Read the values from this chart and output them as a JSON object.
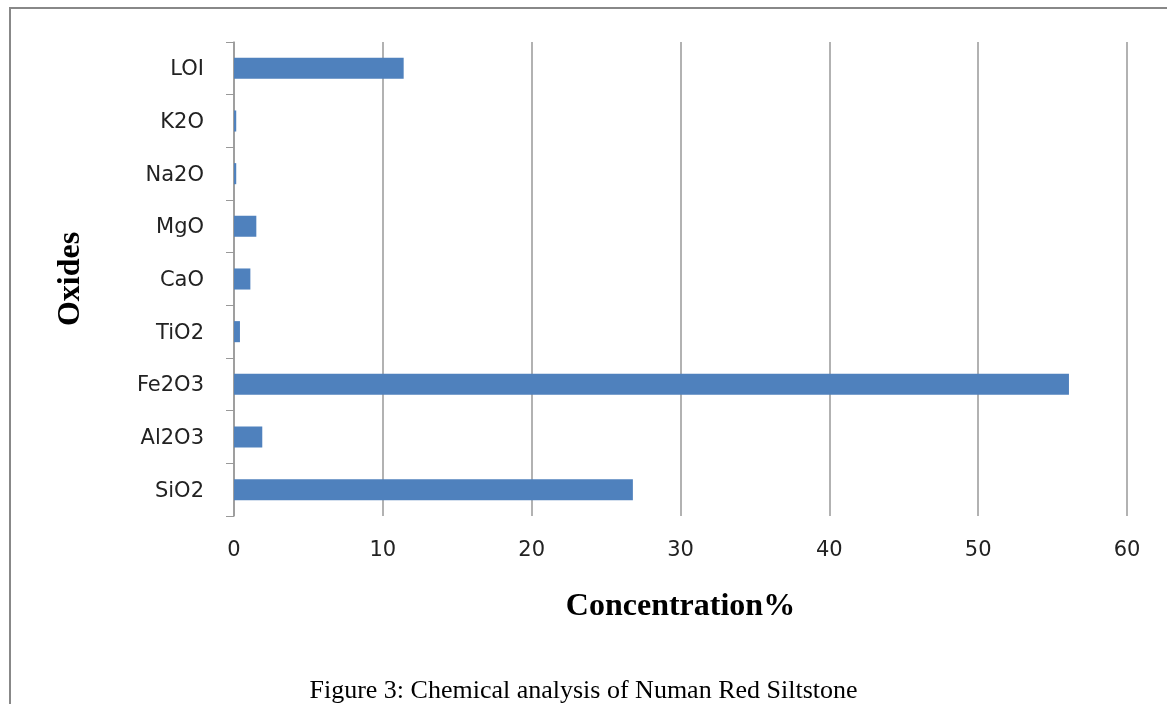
{
  "chart_data": {
    "type": "bar",
    "orientation": "horizontal",
    "categories": [
      "LOI",
      "K2O",
      "Na2O",
      "MgO",
      "CaO",
      "TiO2",
      "Fe2O3",
      "Al2O3",
      "SiO2"
    ],
    "values": [
      11.4,
      0.15,
      0.15,
      1.5,
      1.1,
      0.4,
      56.1,
      1.9,
      26.8
    ],
    "color": "#4f81bd",
    "xlim": [
      0,
      60
    ],
    "xticks": [
      0,
      10,
      20,
      30,
      40,
      50,
      60
    ],
    "grid": "x",
    "xlabel": "Concentration%",
    "ylabel": "Oxides",
    "annotations": [
      "Figure 3: Chemical analysis of Numan Red Siltstone"
    ]
  }
}
